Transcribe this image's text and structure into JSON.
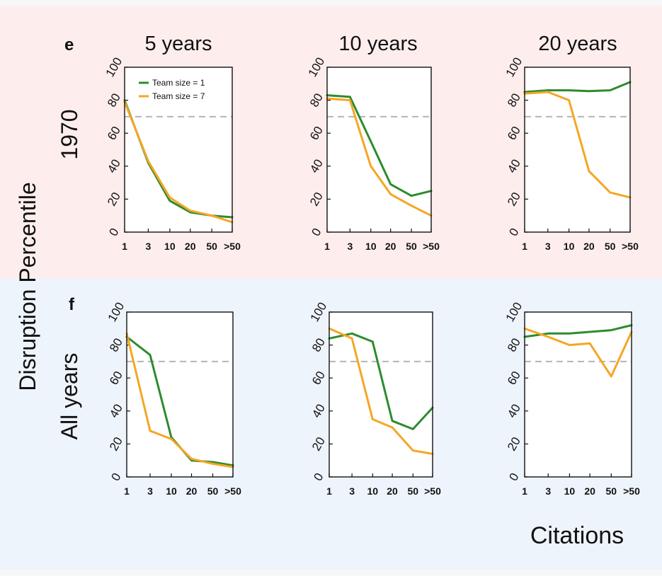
{
  "figure": {
    "ylabel": "Disruption Percentile",
    "xlabel": "Citations",
    "legend": [
      "Team size = 1",
      "Team size = 7"
    ],
    "rows": [
      {
        "letter": "e",
        "label": "1970",
        "bg": "#fdeeed"
      },
      {
        "letter": "f",
        "label": "All years",
        "bg": "#eef4fb"
      }
    ],
    "columns": [
      "5 years",
      "10 years",
      "20 years"
    ],
    "colors": {
      "team1": "#2e8b2e",
      "team7": "#f5a623",
      "reference": "#b5b5b5"
    }
  },
  "chart_data": [
    {
      "type": "line",
      "row": "1970",
      "title": "5 years",
      "categories": [
        "1",
        "3",
        "10",
        "20",
        "50",
        ">50"
      ],
      "ylim": [
        0,
        100
      ],
      "reference_y": 70,
      "legend": true,
      "series": [
        {
          "name": "Team size = 1",
          "values": [
            80,
            42,
            19,
            12,
            10,
            9
          ]
        },
        {
          "name": "Team size = 7",
          "values": [
            79,
            43,
            21,
            13,
            10,
            6
          ]
        }
      ]
    },
    {
      "type": "line",
      "row": "1970",
      "title": "10 years",
      "categories": [
        "1",
        "3",
        "10",
        "20",
        "50",
        ">50"
      ],
      "ylim": [
        0,
        100
      ],
      "reference_y": 70,
      "series": [
        {
          "name": "Team size = 1",
          "values": [
            83,
            82,
            55,
            29,
            22,
            25
          ]
        },
        {
          "name": "Team size = 7",
          "values": [
            81,
            80,
            40,
            23,
            16,
            10
          ]
        }
      ]
    },
    {
      "type": "line",
      "row": "1970",
      "title": "20 years",
      "categories": [
        "1",
        "3",
        "10",
        "20",
        "50",
        ">50"
      ],
      "ylim": [
        0,
        100
      ],
      "reference_y": 70,
      "series": [
        {
          "name": "Team size = 1",
          "values": [
            85,
            86,
            86,
            85.5,
            86,
            91
          ]
        },
        {
          "name": "Team size = 7",
          "values": [
            84,
            85,
            80,
            37,
            24,
            21
          ]
        }
      ]
    },
    {
      "type": "line",
      "row": "All years",
      "title": "5 years",
      "categories": [
        "1",
        "3",
        "10",
        "20",
        "50",
        ">50"
      ],
      "ylim": [
        0,
        100
      ],
      "reference_y": 70,
      "series": [
        {
          "name": "Team size = 1",
          "values": [
            85,
            74,
            24,
            10,
            9,
            7
          ]
        },
        {
          "name": "Team size = 7",
          "values": [
            87,
            28,
            23,
            11,
            8,
            6
          ]
        }
      ]
    },
    {
      "type": "line",
      "row": "All years",
      "title": "10 years",
      "categories": [
        "1",
        "3",
        "10",
        "20",
        "50",
        ">50"
      ],
      "ylim": [
        0,
        100
      ],
      "reference_y": 70,
      "series": [
        {
          "name": "Team size = 1",
          "values": [
            84,
            87,
            82,
            34,
            29,
            42
          ]
        },
        {
          "name": "Team size = 7",
          "values": [
            90,
            84,
            35,
            30,
            16,
            14
          ]
        }
      ]
    },
    {
      "type": "line",
      "row": "All years",
      "title": "20 years",
      "categories": [
        "1",
        "3",
        "10",
        "20",
        "50",
        ">50"
      ],
      "ylim": [
        0,
        100
      ],
      "reference_y": 70,
      "series": [
        {
          "name": "Team size = 1",
          "values": [
            85,
            87,
            87,
            88,
            89,
            92
          ]
        },
        {
          "name": "Team size = 7",
          "values": [
            90,
            85,
            80,
            81,
            61,
            88
          ]
        }
      ]
    }
  ]
}
